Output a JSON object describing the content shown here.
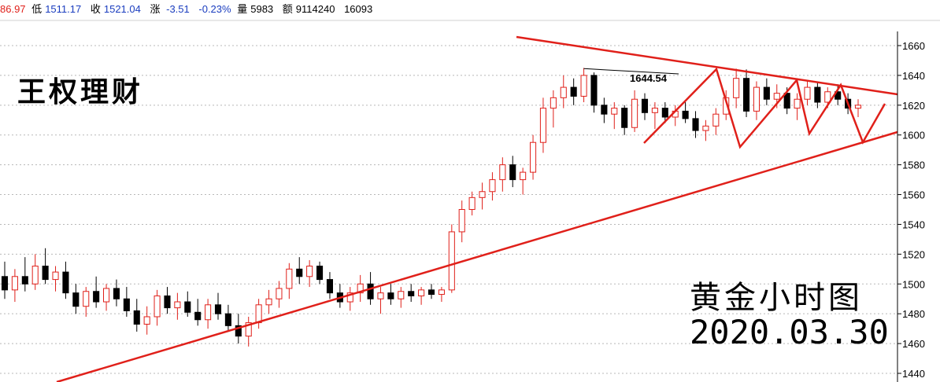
{
  "header": {
    "open": "86.97",
    "low_label": "低",
    "low": "1511.17",
    "close_label": "收",
    "close": "1521.04",
    "change_label": "涨",
    "change": "-3.51",
    "change_pct": "-0.23%",
    "volume_label": "量",
    "volume": "5983",
    "amount_label": "额",
    "amount": "9114240",
    "extra": "16093"
  },
  "watermark": {
    "brand": "王权理财",
    "subtitle": "黄金小时图",
    "date": "2020.03.30"
  },
  "colors": {
    "up": "#e0201a",
    "down": "#000000",
    "trendline": "#e0201a",
    "grid": "#b8b8b8"
  },
  "chart_data": {
    "type": "candlestick",
    "title": "黄金小时图",
    "ylim": [
      1435,
      1670
    ],
    "y_ticks": [
      1440,
      1460,
      1480,
      1500,
      1520,
      1540,
      1560,
      1580,
      1600,
      1620,
      1640,
      1660
    ],
    "grid": "horizontal dashed",
    "annotation": {
      "label": "1644.54",
      "value": 1644.54
    },
    "candles": [
      {
        "o": 1505,
        "h": 1515,
        "l": 1490,
        "c": 1496
      },
      {
        "o": 1496,
        "h": 1510,
        "l": 1488,
        "c": 1505
      },
      {
        "o": 1505,
        "h": 1518,
        "l": 1495,
        "c": 1500
      },
      {
        "o": 1500,
        "h": 1520,
        "l": 1496,
        "c": 1512
      },
      {
        "o": 1512,
        "h": 1524,
        "l": 1500,
        "c": 1503
      },
      {
        "o": 1503,
        "h": 1512,
        "l": 1495,
        "c": 1508
      },
      {
        "o": 1508,
        "h": 1515,
        "l": 1490,
        "c": 1494
      },
      {
        "o": 1494,
        "h": 1500,
        "l": 1480,
        "c": 1485
      },
      {
        "o": 1485,
        "h": 1498,
        "l": 1478,
        "c": 1495
      },
      {
        "o": 1495,
        "h": 1505,
        "l": 1484,
        "c": 1488
      },
      {
        "o": 1488,
        "h": 1500,
        "l": 1482,
        "c": 1497
      },
      {
        "o": 1497,
        "h": 1503,
        "l": 1485,
        "c": 1490
      },
      {
        "o": 1490,
        "h": 1498,
        "l": 1478,
        "c": 1482
      },
      {
        "o": 1482,
        "h": 1490,
        "l": 1468,
        "c": 1473
      },
      {
        "o": 1473,
        "h": 1485,
        "l": 1466,
        "c": 1478
      },
      {
        "o": 1478,
        "h": 1496,
        "l": 1472,
        "c": 1492
      },
      {
        "o": 1492,
        "h": 1498,
        "l": 1480,
        "c": 1484
      },
      {
        "o": 1484,
        "h": 1494,
        "l": 1476,
        "c": 1488
      },
      {
        "o": 1488,
        "h": 1495,
        "l": 1478,
        "c": 1481
      },
      {
        "o": 1481,
        "h": 1490,
        "l": 1472,
        "c": 1476
      },
      {
        "o": 1476,
        "h": 1490,
        "l": 1470,
        "c": 1486
      },
      {
        "o": 1486,
        "h": 1494,
        "l": 1476,
        "c": 1480
      },
      {
        "o": 1480,
        "h": 1486,
        "l": 1468,
        "c": 1472
      },
      {
        "o": 1472,
        "h": 1480,
        "l": 1460,
        "c": 1465
      },
      {
        "o": 1465,
        "h": 1478,
        "l": 1458,
        "c": 1474
      },
      {
        "o": 1474,
        "h": 1490,
        "l": 1470,
        "c": 1486
      },
      {
        "o": 1486,
        "h": 1496,
        "l": 1480,
        "c": 1490
      },
      {
        "o": 1490,
        "h": 1502,
        "l": 1484,
        "c": 1497
      },
      {
        "o": 1497,
        "h": 1514,
        "l": 1490,
        "c": 1510
      },
      {
        "o": 1510,
        "h": 1518,
        "l": 1500,
        "c": 1505
      },
      {
        "o": 1505,
        "h": 1516,
        "l": 1498,
        "c": 1512
      },
      {
        "o": 1512,
        "h": 1515,
        "l": 1500,
        "c": 1503
      },
      {
        "o": 1503,
        "h": 1508,
        "l": 1490,
        "c": 1494
      },
      {
        "o": 1494,
        "h": 1500,
        "l": 1484,
        "c": 1488
      },
      {
        "o": 1488,
        "h": 1498,
        "l": 1482,
        "c": 1494
      },
      {
        "o": 1494,
        "h": 1506,
        "l": 1488,
        "c": 1500
      },
      {
        "o": 1500,
        "h": 1508,
        "l": 1486,
        "c": 1490
      },
      {
        "o": 1490,
        "h": 1498,
        "l": 1480,
        "c": 1494
      },
      {
        "o": 1494,
        "h": 1500,
        "l": 1486,
        "c": 1490
      },
      {
        "o": 1490,
        "h": 1498,
        "l": 1484,
        "c": 1495
      },
      {
        "o": 1495,
        "h": 1500,
        "l": 1488,
        "c": 1492
      },
      {
        "o": 1492,
        "h": 1498,
        "l": 1486,
        "c": 1496
      },
      {
        "o": 1496,
        "h": 1500,
        "l": 1490,
        "c": 1493
      },
      {
        "o": 1493,
        "h": 1498,
        "l": 1488,
        "c": 1496
      },
      {
        "o": 1496,
        "h": 1540,
        "l": 1494,
        "c": 1535
      },
      {
        "o": 1535,
        "h": 1556,
        "l": 1528,
        "c": 1550
      },
      {
        "o": 1550,
        "h": 1562,
        "l": 1546,
        "c": 1558
      },
      {
        "o": 1558,
        "h": 1568,
        "l": 1550,
        "c": 1562
      },
      {
        "o": 1562,
        "h": 1575,
        "l": 1556,
        "c": 1570
      },
      {
        "o": 1570,
        "h": 1585,
        "l": 1562,
        "c": 1580
      },
      {
        "o": 1580,
        "h": 1586,
        "l": 1565,
        "c": 1570
      },
      {
        "o": 1570,
        "h": 1578,
        "l": 1560,
        "c": 1575
      },
      {
        "o": 1575,
        "h": 1600,
        "l": 1570,
        "c": 1595
      },
      {
        "o": 1595,
        "h": 1625,
        "l": 1588,
        "c": 1618
      },
      {
        "o": 1618,
        "h": 1630,
        "l": 1605,
        "c": 1625
      },
      {
        "o": 1625,
        "h": 1640,
        "l": 1618,
        "c": 1632
      },
      {
        "o": 1632,
        "h": 1638,
        "l": 1620,
        "c": 1626
      },
      {
        "o": 1626,
        "h": 1645,
        "l": 1622,
        "c": 1640
      },
      {
        "o": 1640,
        "h": 1642,
        "l": 1615,
        "c": 1620
      },
      {
        "o": 1620,
        "h": 1625,
        "l": 1608,
        "c": 1614
      },
      {
        "o": 1614,
        "h": 1622,
        "l": 1604,
        "c": 1618
      },
      {
        "o": 1618,
        "h": 1620,
        "l": 1600,
        "c": 1605
      },
      {
        "o": 1605,
        "h": 1630,
        "l": 1602,
        "c": 1624
      },
      {
        "o": 1624,
        "h": 1628,
        "l": 1610,
        "c": 1615
      },
      {
        "o": 1615,
        "h": 1622,
        "l": 1604,
        "c": 1618
      },
      {
        "o": 1618,
        "h": 1622,
        "l": 1608,
        "c": 1612
      },
      {
        "o": 1612,
        "h": 1620,
        "l": 1606,
        "c": 1616
      },
      {
        "o": 1616,
        "h": 1622,
        "l": 1608,
        "c": 1611
      },
      {
        "o": 1611,
        "h": 1616,
        "l": 1598,
        "c": 1603
      },
      {
        "o": 1603,
        "h": 1610,
        "l": 1596,
        "c": 1606
      },
      {
        "o": 1606,
        "h": 1618,
        "l": 1600,
        "c": 1614
      },
      {
        "o": 1614,
        "h": 1630,
        "l": 1610,
        "c": 1625
      },
      {
        "o": 1625,
        "h": 1644.54,
        "l": 1618,
        "c": 1638
      },
      {
        "o": 1638,
        "h": 1644,
        "l": 1612,
        "c": 1616
      },
      {
        "o": 1616,
        "h": 1636,
        "l": 1610,
        "c": 1632
      },
      {
        "o": 1632,
        "h": 1638,
        "l": 1620,
        "c": 1624
      },
      {
        "o": 1624,
        "h": 1634,
        "l": 1618,
        "c": 1628
      },
      {
        "o": 1628,
        "h": 1632,
        "l": 1614,
        "c": 1618
      },
      {
        "o": 1618,
        "h": 1628,
        "l": 1610,
        "c": 1624
      },
      {
        "o": 1624,
        "h": 1636,
        "l": 1620,
        "c": 1632
      },
      {
        "o": 1632,
        "h": 1636,
        "l": 1618,
        "c": 1622
      },
      {
        "o": 1622,
        "h": 1632,
        "l": 1618,
        "c": 1629
      },
      {
        "o": 1629,
        "h": 1634,
        "l": 1620,
        "c": 1624
      },
      {
        "o": 1624,
        "h": 1628,
        "l": 1614,
        "c": 1618
      },
      {
        "o": 1618,
        "h": 1624,
        "l": 1612,
        "c": 1620
      }
    ]
  }
}
